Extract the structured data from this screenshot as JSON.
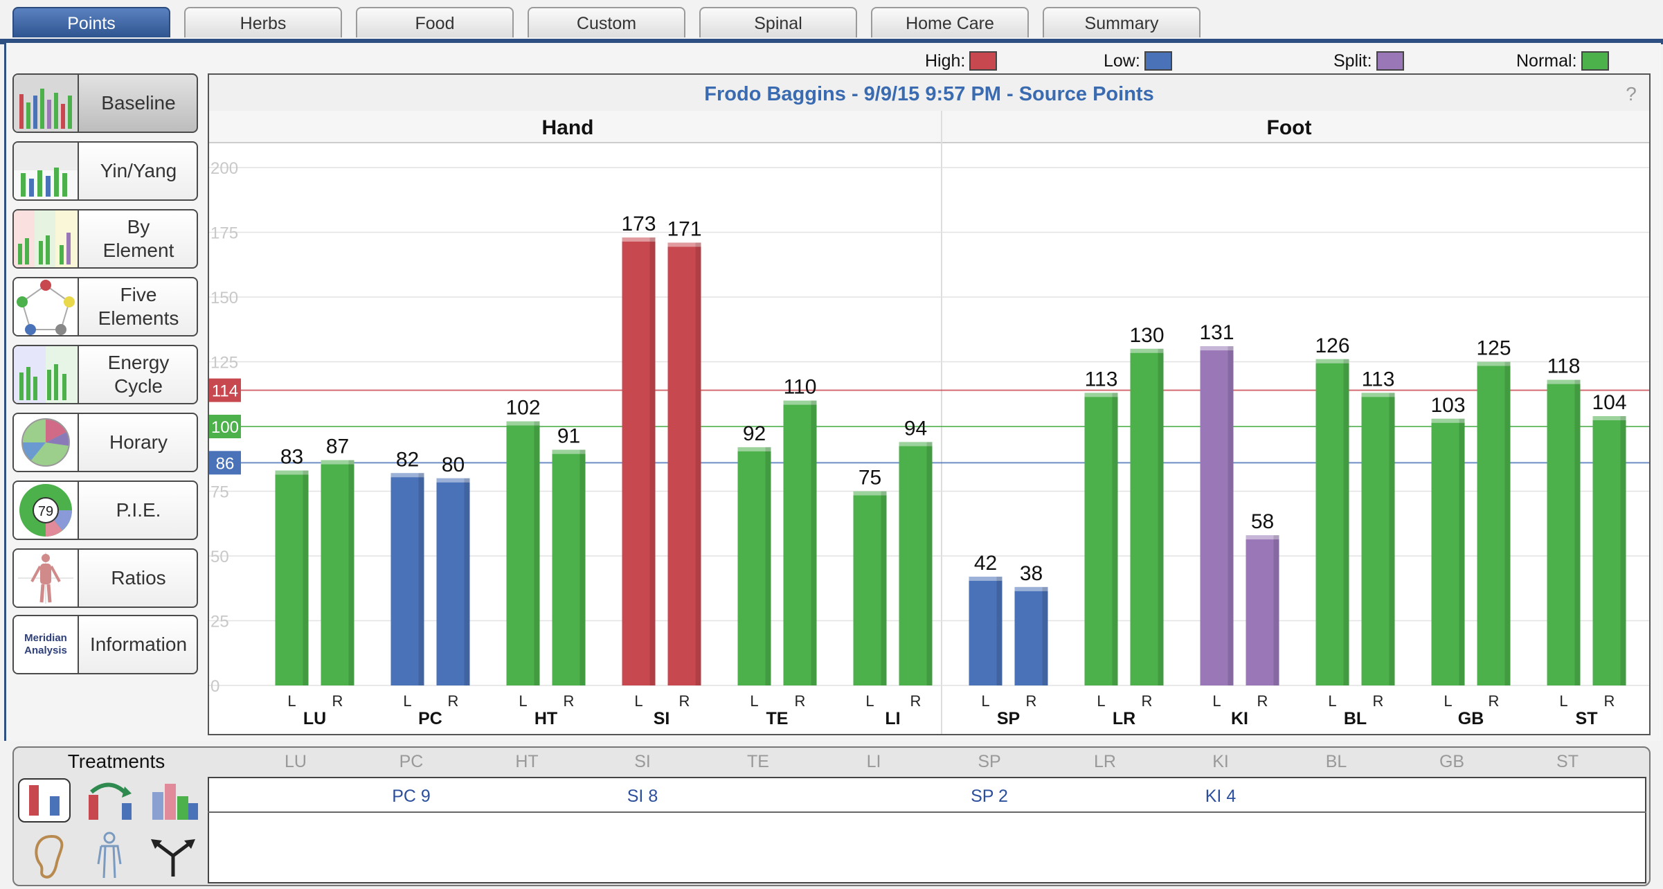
{
  "tabs": [
    "Points",
    "Herbs",
    "Food",
    "Custom",
    "Spinal",
    "Home Care",
    "Summary"
  ],
  "legend": {
    "high": "High:",
    "low": "Low:",
    "split": "Split:",
    "normal": "Normal:"
  },
  "colors": {
    "high": "#c8484f",
    "low": "#4a72b8",
    "split": "#9a78b8",
    "normal": "#4cb04b",
    "accent": "#2e4f82",
    "title": "#3a6bb0"
  },
  "sidebar": [
    "Baseline",
    "Yin/Yang",
    "By\nElement",
    "Five\nElements",
    "Energy\nCycle",
    "Horary",
    "P.I.E.",
    "Ratios",
    "Information"
  ],
  "thumb_texts": {
    "pie": "79",
    "info": "Meridian\nAnalysis"
  },
  "chart": {
    "title": "Frodo Baggins - 9/9/15 9:57 PM - Source Points",
    "help": "?",
    "sections": [
      "Hand",
      "Foot"
    ]
  },
  "chart_data": {
    "type": "bar",
    "ylim": [
      0,
      200
    ],
    "yticks": [
      0,
      25,
      50,
      75,
      125,
      150,
      175,
      200
    ],
    "thresholds": {
      "high": 114,
      "normal": 100,
      "low": 86
    },
    "categories": [
      "LU",
      "PC",
      "HT",
      "SI",
      "TE",
      "LI",
      "SP",
      "LR",
      "KI",
      "BL",
      "GB",
      "ST"
    ],
    "sides": [
      "L",
      "R"
    ],
    "bars": [
      {
        "meridian": "LU",
        "L": 83,
        "R": 87,
        "Ls": "normal",
        "Rs": "normal"
      },
      {
        "meridian": "PC",
        "L": 82,
        "R": 80,
        "Ls": "low",
        "Rs": "low"
      },
      {
        "meridian": "HT",
        "L": 102,
        "R": 91,
        "Ls": "normal",
        "Rs": "normal"
      },
      {
        "meridian": "SI",
        "L": 173,
        "R": 171,
        "Ls": "high",
        "Rs": "high"
      },
      {
        "meridian": "TE",
        "L": 92,
        "R": 110,
        "Ls": "normal",
        "Rs": "normal"
      },
      {
        "meridian": "LI",
        "L": 75,
        "R": 94,
        "Ls": "normal",
        "Rs": "normal"
      },
      {
        "meridian": "SP",
        "L": 42,
        "R": 38,
        "Ls": "low",
        "Rs": "low"
      },
      {
        "meridian": "LR",
        "L": 113,
        "R": 130,
        "Ls": "normal",
        "Rs": "normal"
      },
      {
        "meridian": "KI",
        "L": 131,
        "R": 58,
        "Ls": "split",
        "Rs": "split"
      },
      {
        "meridian": "BL",
        "L": 126,
        "R": 113,
        "Ls": "normal",
        "Rs": "normal"
      },
      {
        "meridian": "GB",
        "L": 103,
        "R": 125,
        "Ls": "normal",
        "Rs": "normal"
      },
      {
        "meridian": "ST",
        "L": 118,
        "R": 104,
        "Ls": "normal",
        "Rs": "normal"
      }
    ]
  },
  "treatments": {
    "title": "Treatments",
    "columns": [
      "LU",
      "PC",
      "HT",
      "SI",
      "TE",
      "LI",
      "SP",
      "LR",
      "KI",
      "BL",
      "GB",
      "ST"
    ],
    "values": {
      "PC": "PC 9",
      "SI": "SI 8",
      "SP": "SP 2",
      "KI": "KI 4"
    }
  }
}
